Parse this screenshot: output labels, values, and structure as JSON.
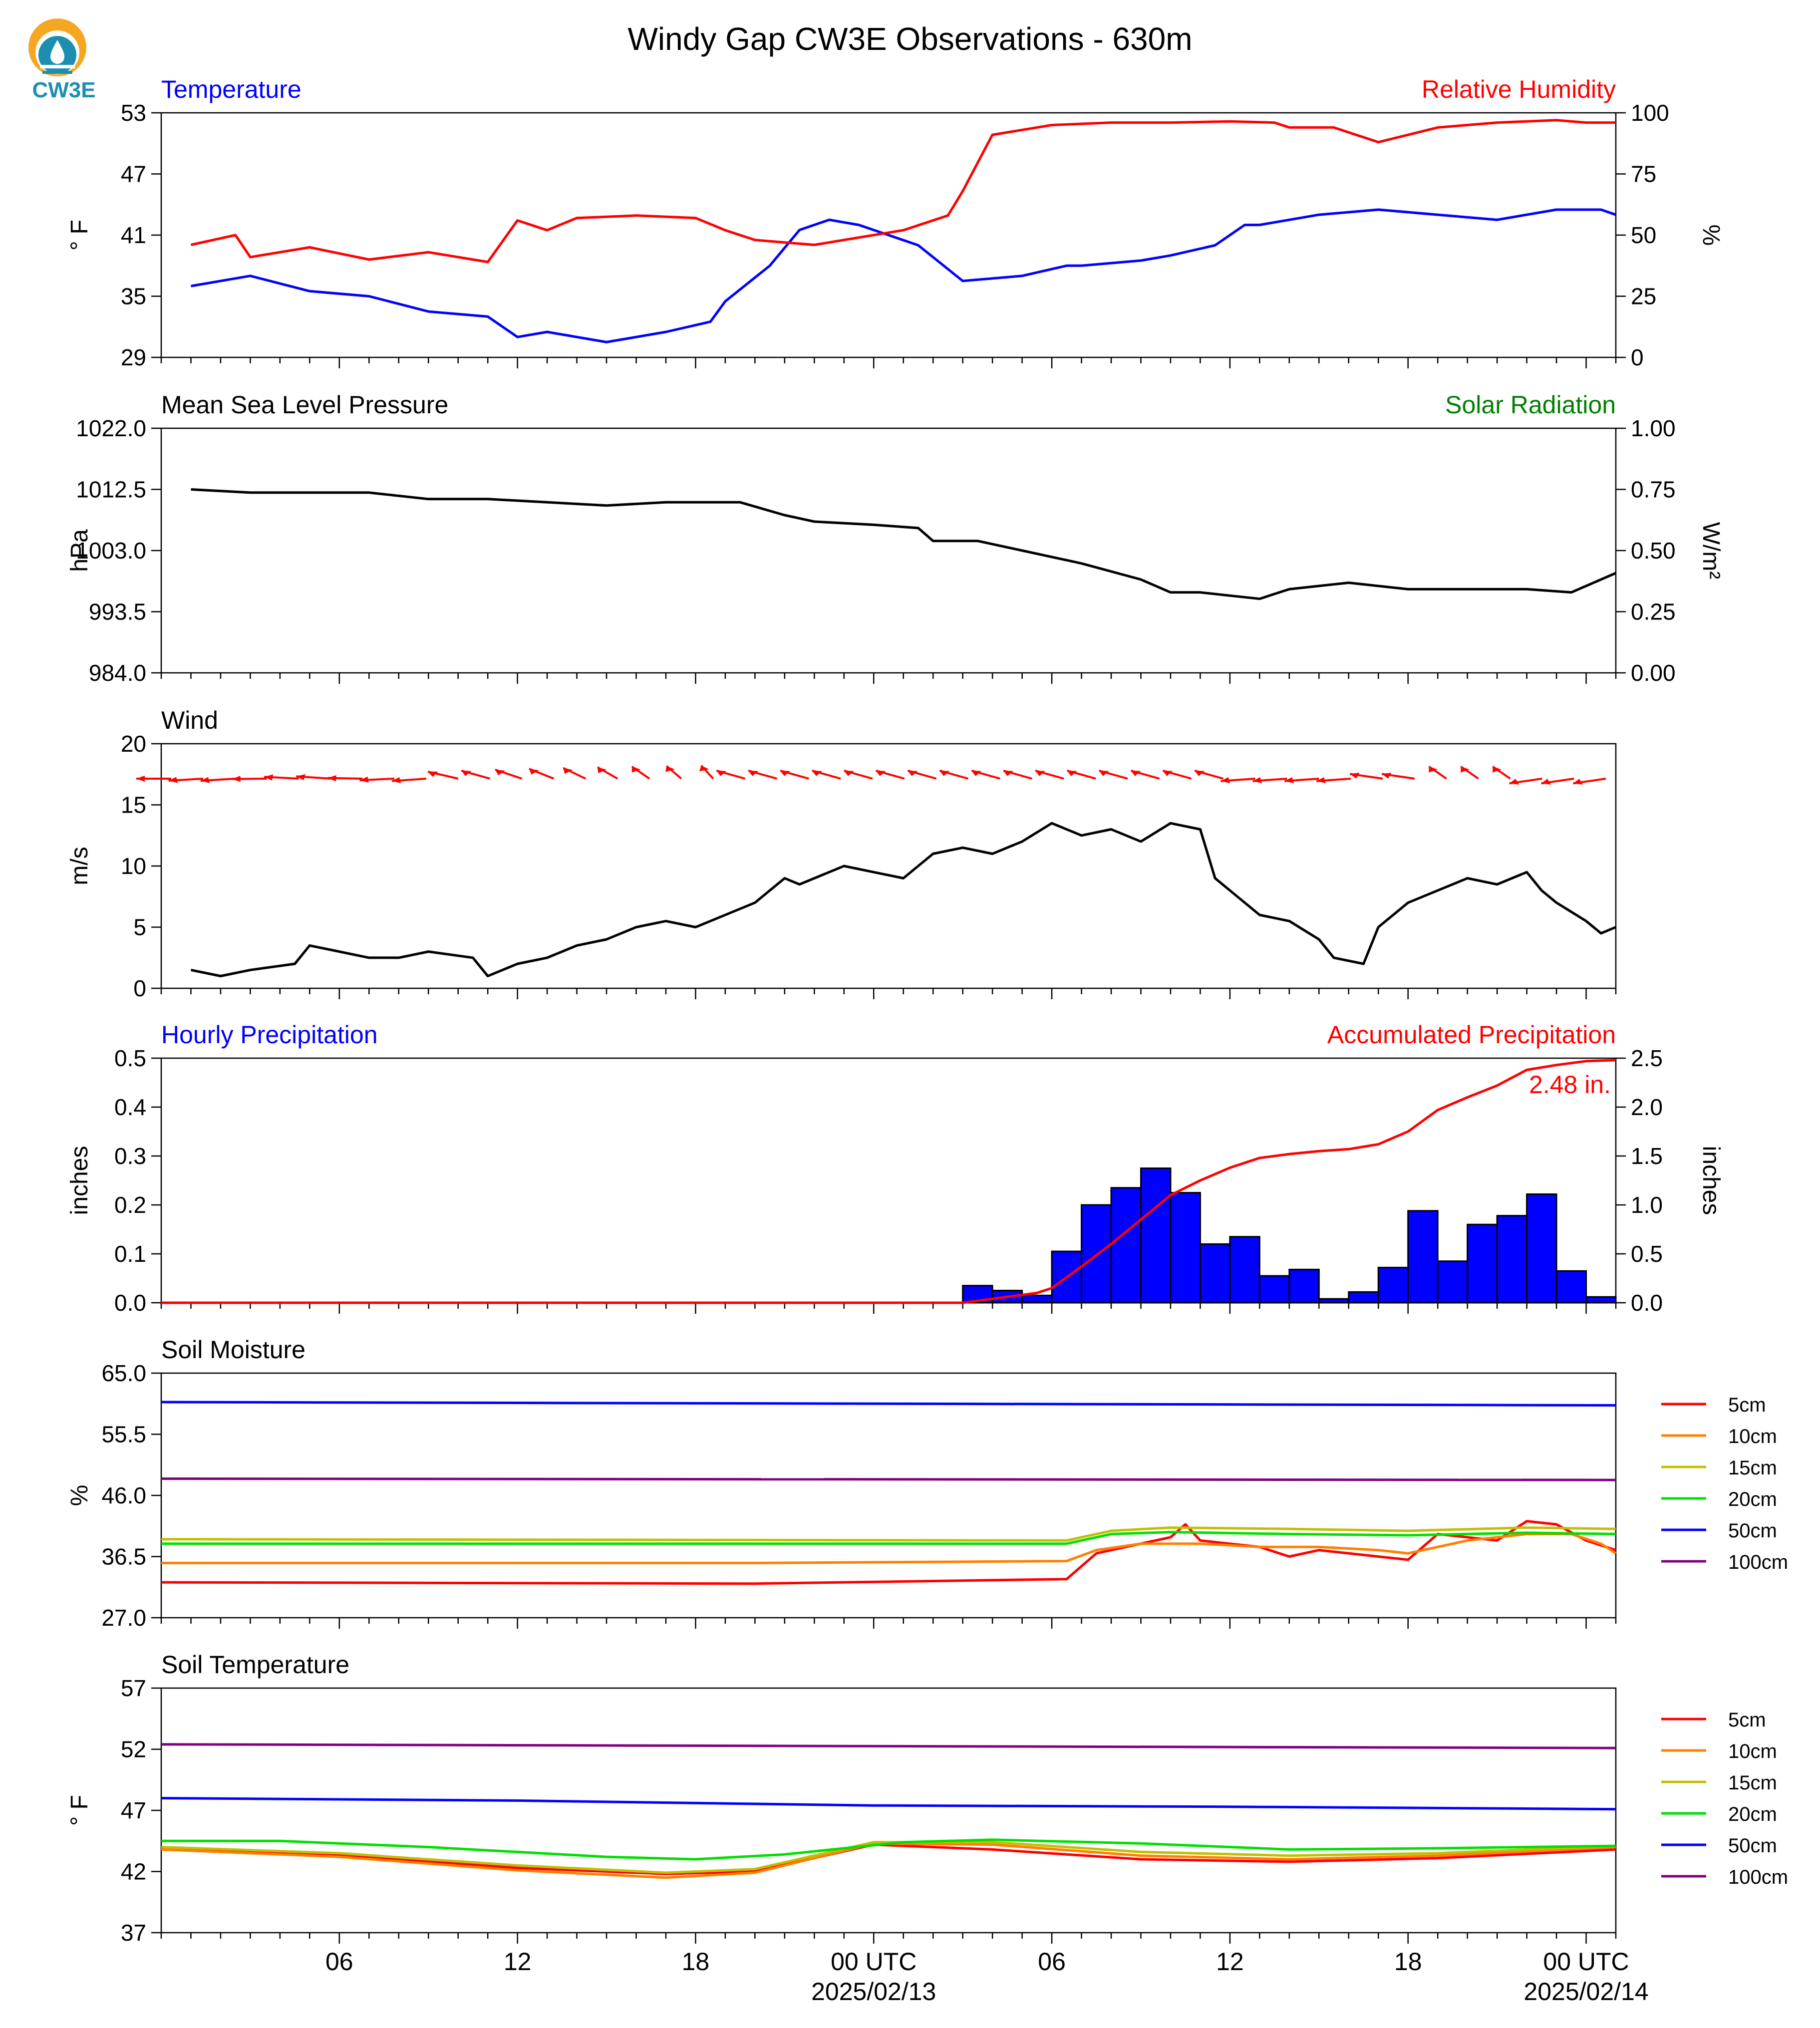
{
  "header": {
    "title": "Windy Gap CW3E Observations - 630m",
    "logo_text": "CW3E"
  },
  "colors": {
    "red": "#ff0000",
    "blue": "#0000ff",
    "black": "#000000",
    "green": "#008000",
    "bar_blue": "#0000ff",
    "logo_orange": "#f5a623",
    "logo_teal": "#1c8fb0",
    "soil_5cm": "#ff0000",
    "soil_10cm": "#ff8000",
    "soil_15cm": "#c0c000",
    "soil_20cm": "#00e000",
    "soil_50cm": "#0000ff",
    "soil_100cm": "#800080"
  },
  "time_axis": {
    "tick_labels": [
      "06",
      "12",
      "18",
      "00 UTC",
      "06",
      "12",
      "18",
      "00 UTC"
    ],
    "date_labels": [
      "2025/02/13",
      "2025/02/14"
    ]
  },
  "chart_data": [
    {
      "type": "line",
      "id": "temp_rh",
      "left_title": "Temperature",
      "right_title": "Relative Humidity",
      "ylabel": "° F",
      "ylabel_right": "%",
      "ylim": [
        29,
        53
      ],
      "ylim_right": [
        0,
        100
      ],
      "yticks": [
        "53",
        "47",
        "41",
        "35",
        "29"
      ],
      "yticks_right": [
        "100",
        "75",
        "50",
        "25",
        "0"
      ],
      "series": [
        {
          "axis": "left",
          "color": "#0000ff",
          "x": [
            1.0,
            3.0,
            5.0,
            7.0,
            9.0,
            11.0,
            12.0,
            13.0,
            15.0,
            17.0,
            18.5,
            19.0,
            20.5,
            21.5,
            22.5,
            23.5,
            25.5,
            27.0,
            29.0,
            30.5,
            31.0,
            33.0,
            34.0,
            35.5,
            36.5,
            37.0,
            39.0,
            41.0,
            43.0,
            45.0,
            47.0,
            48.5,
            49.0
          ],
          "y": [
            36.0,
            37.0,
            35.5,
            35.0,
            33.5,
            33.0,
            31.0,
            31.5,
            30.5,
            31.5,
            32.5,
            34.5,
            38.0,
            41.5,
            42.5,
            42.0,
            40.0,
            36.5,
            37.0,
            38.0,
            38.0,
            38.5,
            39.0,
            40.0,
            42.0,
            42.0,
            43.0,
            43.5,
            43.0,
            42.5,
            43.5,
            43.5,
            43.0
          ]
        },
        {
          "axis": "right",
          "color": "#ff0000",
          "x": [
            1.0,
            2.5,
            3.0,
            5.0,
            7.0,
            9.0,
            11.0,
            12.0,
            13.0,
            14.0,
            16.0,
            18.0,
            19.0,
            20.0,
            22.0,
            23.5,
            25.0,
            26.5,
            27.0,
            28.0,
            30.0,
            32.0,
            34.0,
            36.0,
            37.5,
            38.0,
            39.5,
            41.0,
            43.0,
            45.0,
            47.0,
            48.0,
            49.0
          ],
          "y": [
            46.0,
            50.0,
            41.0,
            45.0,
            40.0,
            43.0,
            39.0,
            56.0,
            52.0,
            57.0,
            58.0,
            57.0,
            52.0,
            48.0,
            46.0,
            49.0,
            52.0,
            58.0,
            68.0,
            91.0,
            95.0,
            96.0,
            96.0,
            96.5,
            96.0,
            94.0,
            94.0,
            88.0,
            94.0,
            96.0,
            97.0,
            96.0,
            96.0
          ]
        }
      ]
    },
    {
      "type": "line",
      "id": "pressure",
      "left_title": "Mean Sea Level Pressure",
      "right_title": "Solar Radiation",
      "ylabel": "hPa",
      "ylabel_right": "W/m²",
      "ylim": [
        984.0,
        1022.0
      ],
      "ylim_right": [
        0.0,
        1.0
      ],
      "yticks": [
        "1022.0",
        "1012.5",
        "1003.0",
        "993.5",
        "984.0"
      ],
      "yticks_right": [
        "1.00",
        "0.75",
        "0.50",
        "0.25",
        "0.00"
      ],
      "series": [
        {
          "axis": "left",
          "color": "#000000",
          "x": [
            1.0,
            3.0,
            5.0,
            7.0,
            9.0,
            11.0,
            13.0,
            15.0,
            17.0,
            18.5,
            19.5,
            21.0,
            22.0,
            24.0,
            25.5,
            26.0,
            27.5,
            29.0,
            31.0,
            33.0,
            34.0,
            35.0,
            36.0,
            37.0,
            38.0,
            40.0,
            42.0,
            44.0,
            46.0,
            47.5,
            48.0,
            49.0
          ],
          "y": [
            1012.5,
            1012.0,
            1012.0,
            1012.0,
            1011.0,
            1011.0,
            1010.5,
            1010.0,
            1010.5,
            1010.5,
            1010.5,
            1008.5,
            1007.5,
            1007.0,
            1006.5,
            1004.5,
            1004.5,
            1003.0,
            1001.0,
            998.5,
            996.5,
            996.5,
            996.0,
            995.5,
            997.0,
            998.0,
            997.0,
            997.0,
            997.0,
            996.5,
            997.5,
            999.5
          ]
        }
      ]
    },
    {
      "type": "line",
      "id": "wind",
      "left_title": "Wind",
      "ylabel": "m/s",
      "ylim": [
        0,
        20
      ],
      "yticks": [
        "20",
        "15",
        "10",
        "5",
        "0"
      ],
      "series": [
        {
          "axis": "left",
          "color": "#000000",
          "x": [
            1.0,
            2.0,
            3.0,
            4.5,
            5.0,
            6.0,
            7.0,
            8.0,
            9.0,
            10.5,
            11.0,
            12.0,
            13.0,
            14.0,
            15.0,
            16.0,
            17.0,
            18.0,
            19.0,
            20.0,
            21.0,
            21.5,
            23.0,
            24.0,
            25.0,
            26.0,
            27.0,
            28.0,
            29.0,
            30.0,
            31.0,
            32.0,
            33.0,
            34.0,
            35.0,
            35.5,
            36.0,
            37.0,
            38.0,
            39.0,
            39.5,
            40.5,
            41.0,
            42.0,
            43.0,
            44.0,
            45.0,
            46.0,
            46.5,
            47.0,
            48.0,
            48.5,
            49.0
          ],
          "y": [
            1.5,
            1.0,
            1.5,
            2.0,
            3.5,
            3.0,
            2.5,
            2.5,
            3.0,
            2.5,
            1.0,
            2.0,
            2.5,
            3.5,
            4.0,
            5.0,
            5.5,
            5.0,
            6.0,
            7.0,
            9.0,
            8.5,
            10.0,
            9.5,
            9.0,
            11.0,
            11.5,
            11.0,
            12.0,
            13.5,
            12.5,
            13.0,
            12.0,
            13.5,
            13.0,
            9.0,
            8.0,
            6.0,
            5.5,
            4.0,
            2.5,
            2.0,
            5.0,
            7.0,
            8.0,
            9.0,
            8.5,
            9.5,
            8.0,
            7.0,
            5.5,
            4.5,
            5.0
          ]
        }
      ]
    },
    {
      "type": "bar",
      "id": "precip",
      "left_title": "Hourly Precipitation",
      "right_title": "Accumulated Precipitation",
      "annotation": "2.48 in.",
      "ylabel": "inches",
      "ylabel_right": "inches",
      "ylim": [
        0.0,
        0.5
      ],
      "ylim_right": [
        0.0,
        2.5
      ],
      "yticks": [
        "0.5",
        "0.4",
        "0.3",
        "0.2",
        "0.1",
        "0.0"
      ],
      "yticks_right": [
        "2.5",
        "2.0",
        "1.5",
        "1.0",
        "0.5",
        "0.0"
      ],
      "bars_start_hour": [
        27,
        28,
        29,
        30,
        31,
        32,
        33,
        34,
        35,
        36,
        37,
        38,
        39,
        40,
        41,
        42,
        43,
        44,
        45,
        46,
        47,
        48
      ],
      "bars_values": [
        0.035,
        0.025,
        0.015,
        0.105,
        0.2,
        0.235,
        0.275,
        0.225,
        0.12,
        0.135,
        0.055,
        0.068,
        0.008,
        0.022,
        0.072,
        0.188,
        0.085,
        0.16,
        0.178,
        0.222,
        0.065,
        0.012
      ],
      "series": [
        {
          "axis": "right",
          "color": "#ff0000",
          "x": [
            0.0,
            27.0,
            28.5,
            29.5,
            30.0,
            31.0,
            32.0,
            33.0,
            34.0,
            35.0,
            36.0,
            37.0,
            38.0,
            39.0,
            40.0,
            41.0,
            42.0,
            43.0,
            44.0,
            45.0,
            46.0,
            47.0,
            48.0,
            49.0
          ],
          "y": [
            0.0,
            0.0,
            0.06,
            0.1,
            0.15,
            0.37,
            0.6,
            0.85,
            1.1,
            1.25,
            1.38,
            1.48,
            1.52,
            1.55,
            1.57,
            1.62,
            1.75,
            1.97,
            2.1,
            2.22,
            2.38,
            2.43,
            2.47,
            2.48
          ]
        }
      ]
    },
    {
      "type": "line",
      "id": "soil_moisture",
      "left_title": "Soil Moisture",
      "ylabel": "%",
      "ylim": [
        27.0,
        65.0
      ],
      "yticks": [
        "65.0",
        "55.5",
        "46.0",
        "36.5",
        "27.0"
      ],
      "legend": [
        "5cm",
        "10cm",
        "15cm",
        "20cm",
        "50cm",
        "100cm"
      ],
      "series": [
        {
          "name": "5cm",
          "color": "#ff0000",
          "x": [
            0.0,
            20.0,
            30.5,
            31.5,
            33.0,
            34.0,
            34.5,
            35.0,
            37.0,
            38.0,
            39.0,
            41.0,
            42.0,
            43.0,
            44.0,
            45.0,
            46.0,
            47.0,
            48.0,
            49.0
          ],
          "y": [
            32.5,
            32.3,
            33.0,
            37.0,
            38.5,
            39.5,
            41.5,
            39.0,
            38.0,
            36.5,
            37.5,
            36.5,
            36.0,
            40.0,
            39.5,
            39.0,
            42.0,
            41.5,
            39.0,
            37.5
          ]
        },
        {
          "name": "10cm",
          "color": "#ff8000",
          "x": [
            0.0,
            20.0,
            30.5,
            31.5,
            33.0,
            35.0,
            37.0,
            39.0,
            41.0,
            42.0,
            44.0,
            46.0,
            47.5,
            48.5,
            49.0
          ],
          "y": [
            35.5,
            35.5,
            35.8,
            37.5,
            38.5,
            38.5,
            38.0,
            38.0,
            37.5,
            37.0,
            39.0,
            40.0,
            40.0,
            38.5,
            37.0
          ]
        },
        {
          "name": "15cm",
          "color": "#c0c000",
          "x": [
            0.0,
            30.5,
            32.0,
            34.0,
            38.0,
            42.0,
            46.0,
            49.0
          ],
          "y": [
            39.2,
            39.0,
            40.5,
            41.0,
            40.8,
            40.5,
            41.0,
            40.8
          ]
        },
        {
          "name": "20cm",
          "color": "#00e000",
          "x": [
            0.0,
            30.5,
            32.0,
            34.0,
            38.0,
            42.0,
            46.0,
            49.0
          ],
          "y": [
            38.5,
            38.5,
            40.0,
            40.3,
            40.0,
            39.8,
            40.2,
            40.0
          ]
        },
        {
          "name": "50cm",
          "color": "#0000ff",
          "x": [
            0.0,
            49.0
          ],
          "y": [
            60.5,
            60.0
          ]
        },
        {
          "name": "100cm",
          "color": "#800080",
          "x": [
            0.0,
            49.0
          ],
          "y": [
            48.6,
            48.4
          ]
        }
      ]
    },
    {
      "type": "line",
      "id": "soil_temperature",
      "left_title": "Soil Temperature",
      "ylabel": "° F",
      "ylim": [
        37,
        57
      ],
      "yticks": [
        "57",
        "52",
        "47",
        "42",
        "37"
      ],
      "legend": [
        "5cm",
        "10cm",
        "15cm",
        "20cm",
        "50cm",
        "100cm"
      ],
      "series": [
        {
          "name": "5cm",
          "color": "#ff0000",
          "x": [
            0.0,
            6.0,
            12.0,
            17.0,
            20.0,
            24.0,
            28.0,
            33.0,
            38.0,
            43.0,
            49.0
          ],
          "y": [
            43.8,
            43.3,
            42.3,
            41.8,
            42.0,
            44.2,
            43.8,
            43.0,
            42.8,
            43.1,
            43.8
          ]
        },
        {
          "name": "10cm",
          "color": "#ff8000",
          "x": [
            0.0,
            6.0,
            12.0,
            17.0,
            20.0,
            24.0,
            28.0,
            33.0,
            38.0,
            43.0,
            49.0
          ],
          "y": [
            43.8,
            43.2,
            42.1,
            41.5,
            41.9,
            44.3,
            44.2,
            43.3,
            43.0,
            43.3,
            44.0
          ]
        },
        {
          "name": "15cm",
          "color": "#c0c000",
          "x": [
            0.0,
            6.0,
            12.0,
            17.0,
            20.0,
            24.0,
            28.0,
            33.0,
            38.0,
            43.0,
            49.0
          ],
          "y": [
            44.0,
            43.5,
            42.5,
            41.9,
            42.2,
            44.4,
            44.4,
            43.6,
            43.3,
            43.5,
            44.1
          ]
        },
        {
          "name": "20cm",
          "color": "#00e000",
          "x": [
            0.0,
            4.0,
            9.0,
            15.0,
            18.0,
            21.0,
            25.0,
            28.0,
            33.0,
            38.0,
            43.0,
            49.0
          ],
          "y": [
            44.5,
            44.5,
            44.0,
            43.2,
            43.0,
            43.4,
            44.4,
            44.6,
            44.3,
            43.8,
            43.9,
            44.1
          ]
        },
        {
          "name": "50cm",
          "color": "#0000ff",
          "x": [
            0.0,
            12.0,
            24.0,
            36.0,
            49.0
          ],
          "y": [
            48.0,
            47.8,
            47.4,
            47.3,
            47.1
          ]
        },
        {
          "name": "100cm",
          "color": "#800080",
          "x": [
            0.0,
            49.0
          ],
          "y": [
            52.4,
            52.1
          ]
        }
      ]
    }
  ]
}
